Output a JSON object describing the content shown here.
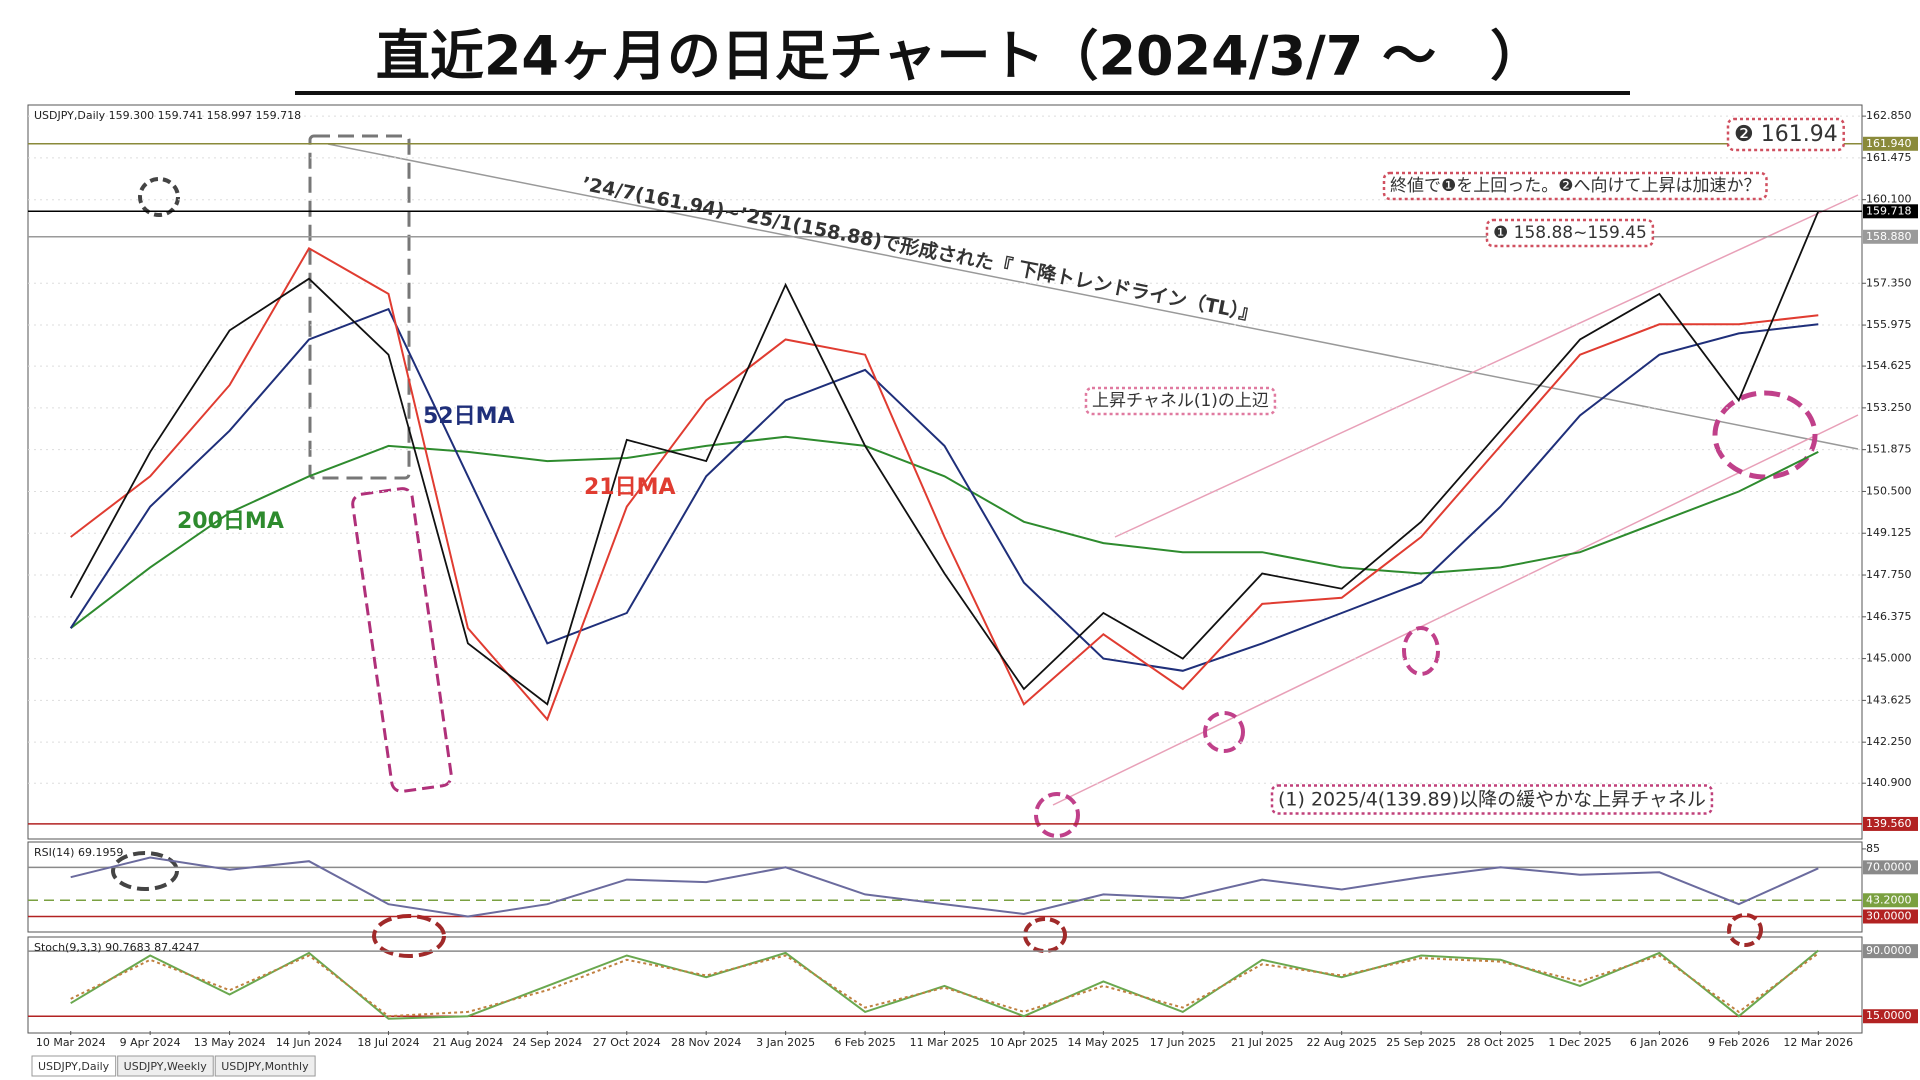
{
  "title": "直近24ヶ月の日足チャート（2024/3/7 ～　）",
  "tabs": [
    "USDJPY,Daily",
    "USDJPY,Weekly",
    "USDJPY,Monthly"
  ],
  "chart_data": [
    {
      "type": "line",
      "info": "USDJPY,Daily  159.300 159.741 158.997 159.718",
      "categories": [
        "10 Mar 2024",
        "9 Apr 2024",
        "13 May 2024",
        "14 Jun 2024",
        "18 Jul 2024",
        "21 Aug 2024",
        "24 Sep 2024",
        "27 Oct 2024",
        "28 Nov 2024",
        "3 Jan 2025",
        "6 Feb 2025",
        "11 Mar 2025",
        "10 Apr 2025",
        "14 May 2025",
        "17 Jun 2025",
        "21 Jul 2025",
        "22 Aug 2025",
        "25 Sep 2025",
        "28 Oct 2025",
        "1 Dec 2025",
        "6 Jan 2026",
        "9 Feb 2026",
        "12 Mar 2026"
      ],
      "series": [
        {
          "name": "200日MA",
          "color": "#2e8b2e",
          "values": [
            146.0,
            148.0,
            149.8,
            151.0,
            152.0,
            151.8,
            151.5,
            151.6,
            152.0,
            152.3,
            152.0,
            151.0,
            149.5,
            148.8,
            148.5,
            148.5,
            148.0,
            147.8,
            148.0,
            148.5,
            149.5,
            150.5,
            151.8
          ]
        },
        {
          "name": "52日MA",
          "color": "#1f2f7a",
          "values": [
            146.0,
            150.0,
            152.5,
            155.5,
            156.5,
            151.0,
            145.5,
            146.5,
            151.0,
            153.5,
            154.5,
            152.0,
            147.5,
            145.0,
            144.6,
            145.5,
            146.5,
            147.5,
            150.0,
            153.0,
            155.0,
            155.7,
            156.0
          ]
        },
        {
          "name": "21日MA",
          "color": "#e03c31",
          "values": [
            149.0,
            151.0,
            154.0,
            158.5,
            157.0,
            146.0,
            143.0,
            150.0,
            153.5,
            155.5,
            155.0,
            149.0,
            143.5,
            145.8,
            144.0,
            146.8,
            147.0,
            149.0,
            152.0,
            155.0,
            156.0,
            156.0,
            156.3
          ]
        },
        {
          "name": "USDJPY",
          "color": "#111111",
          "values": [
            147.0,
            151.8,
            155.8,
            157.5,
            155.0,
            145.5,
            143.5,
            152.2,
            151.5,
            157.3,
            152.0,
            147.8,
            144.0,
            146.5,
            145.0,
            147.8,
            147.3,
            149.5,
            152.5,
            155.5,
            157.0,
            153.5,
            159.718
          ]
        }
      ],
      "ylim": [
        139.13,
        163.15
      ],
      "yticks": [
        {
          "value": 162.85,
          "label": "162.850"
        },
        {
          "value": 161.475,
          "label": "161.475"
        },
        {
          "value": 160.1,
          "label": "160.100"
        },
        {
          "value": 157.35,
          "label": "157.350"
        },
        {
          "value": 155.975,
          "label": "155.975"
        },
        {
          "value": 154.625,
          "label": "154.625"
        },
        {
          "value": 153.25,
          "label": "153.250"
        },
        {
          "value": 151.875,
          "label": "151.875"
        },
        {
          "value": 150.5,
          "label": "150.500"
        },
        {
          "value": 149.125,
          "label": "149.125"
        },
        {
          "value": 147.75,
          "label": "147.750"
        },
        {
          "value": 146.375,
          "label": "146.375"
        },
        {
          "value": 145,
          "label": "145.000"
        },
        {
          "value": 143.625,
          "label": "143.625"
        },
        {
          "value": 142.25,
          "label": "142.250"
        },
        {
          "value": 140.9,
          "label": "140.900"
        }
      ],
      "levels": [
        {
          "value": 161.94,
          "label": "161.940",
          "color": "#8a8a3a",
          "label_color": "#ffffff"
        },
        {
          "value": 159.718,
          "label": "159.718",
          "color": "#000000",
          "label_color": "#ffffff"
        },
        {
          "value": 158.88,
          "label": "158.880",
          "color": "#9a9a9a",
          "label_color": "#ffffff"
        },
        {
          "value": 139.56,
          "label": "139.560",
          "color": "#b22222",
          "label_color": "#ffffff"
        }
      ],
      "grid": true,
      "annotations": [
        {
          "text": "52日MA",
          "color": "#1f2f7a"
        },
        {
          "text": "21日MA",
          "color": "#e03c31"
        },
        {
          "text": "200日MA",
          "color": "#2e8b2e"
        },
        {
          "text": "’24/7(161.94)~’25/1(158.88)で形成された『 下降トレンドライン（TL）』",
          "color": "#333333"
        },
        {
          "text": "上昇チャネル(1)の上辺",
          "color": "#333333",
          "box": "#e07aa0"
        },
        {
          "text": "(1) 2025/4(139.89)以降の緩やかな上昇チャネル",
          "color": "#333333",
          "box": "#c0407a"
        },
        {
          "text": "終値で❶を上回った。❷へ向けて上昇は加速か？",
          "color": "#333333",
          "box": "#d05060"
        },
        {
          "text": "❶ 158.88~159.45",
          "color": "#333333",
          "box": "#d05060"
        },
        {
          "text": "❷ 161.94",
          "color": "#333333",
          "box": "#d05060"
        }
      ]
    },
    {
      "type": "line",
      "info": "RSI(14) 69.1959",
      "series": [
        {
          "name": "RSI(14)",
          "color": "#6b6b9e",
          "values": [
            62,
            78,
            68,
            75,
            40,
            30,
            40,
            60,
            58,
            70,
            48,
            40,
            32,
            48,
            45,
            60,
            52,
            62,
            70,
            64,
            66,
            40,
            69.1959
          ]
        }
      ],
      "ylim": [
        19,
        89
      ],
      "yticks": [
        85
      ],
      "levels": [
        {
          "value": 70,
          "label": "70.0000",
          "color": "#8a8a8a",
          "label_color": "#ffffff"
        },
        {
          "value": 43.2,
          "label": "43.2000",
          "color": "#7aa040",
          "label_color": "#ffffff",
          "dashed": true
        },
        {
          "value": 30,
          "label": "30.0000",
          "color": "#b22222",
          "label_color": "#ffffff"
        }
      ],
      "grid": false
    },
    {
      "type": "line",
      "info": "Stoch(9,3,3) 90.7683 87.4247",
      "series": [
        {
          "name": "Stoch main",
          "color": "#6aa84f",
          "values": [
            30,
            85,
            40,
            88,
            12,
            15,
            50,
            85,
            60,
            88,
            20,
            50,
            15,
            55,
            20,
            80,
            60,
            85,
            80,
            50,
            88,
            15,
            90.7683
          ]
        },
        {
          "name": "Stoch signal",
          "color": "#c08040",
          "style": "dotted",
          "values": [
            35,
            80,
            45,
            85,
            15,
            20,
            45,
            80,
            62,
            85,
            25,
            48,
            20,
            50,
            25,
            75,
            62,
            82,
            78,
            55,
            85,
            20,
            87.4247
          ]
        }
      ],
      "ylim": [
        -2,
        104
      ],
      "yticks": [],
      "levels": [
        {
          "value": 90,
          "label": "90.0000",
          "color": "#8a8a8a",
          "label_color": "#ffffff"
        },
        {
          "value": 15,
          "label": "15.0000",
          "color": "#b22222",
          "label_color": "#ffffff"
        }
      ],
      "grid": false
    }
  ]
}
